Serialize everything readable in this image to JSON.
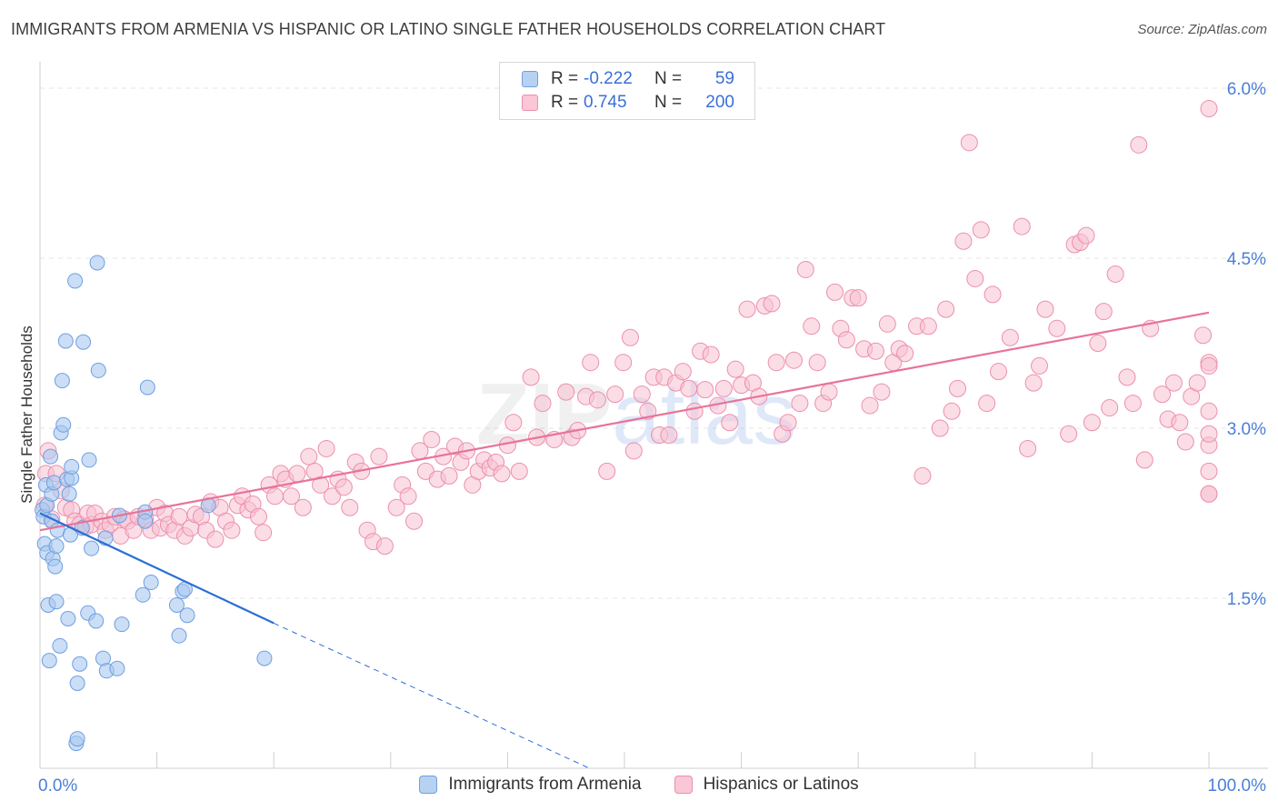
{
  "header": {
    "title": "IMMIGRANTS FROM ARMENIA VS HISPANIC OR LATINO SINGLE FATHER HOUSEHOLDS CORRELATION CHART",
    "source": "Source: ZipAtlas.com"
  },
  "legend": {
    "r_label": "R =",
    "n_label": "N =",
    "rows": [
      {
        "r": "-0.222",
        "n": "59",
        "color": "#9dc1ef"
      },
      {
        "r": "0.745",
        "n": "200",
        "color": "#f6b3c8"
      }
    ]
  },
  "bottom_legend": [
    "Immigrants from Armenia",
    "Hispanics or Latinos"
  ],
  "colors": {
    "blue_fill": "#a9c8f0",
    "blue_stroke": "#6f9fe0",
    "blue_line": "#2c6fd6",
    "pink_fill": "#f8c1d2",
    "pink_stroke": "#ec8fae",
    "pink_line": "#e8739a",
    "axis_text": "#4b7fd6"
  },
  "chart_data": {
    "type": "scatter",
    "title": "IMMIGRANTS FROM ARMENIA VS HISPANIC OR LATINO SINGLE FATHER HOUSEHOLDS CORRELATION CHART",
    "xlabel": "",
    "ylabel": "Single Father Households",
    "xlim": [
      0,
      100
    ],
    "ylim": [
      0,
      6.2
    ],
    "x_tick_labels": [
      "0.0%",
      "100.0%"
    ],
    "y_ticks": [
      1.5,
      3.0,
      4.5,
      6.0
    ],
    "y_tick_labels": [
      "1.5%",
      "3.0%",
      "4.5%",
      "6.0%"
    ],
    "grid": true,
    "watermark": "ZIPatlas",
    "series": [
      {
        "name": "Immigrants from Armenia",
        "r": -0.222,
        "n": 59,
        "trend": {
          "x": [
            0,
            20
          ],
          "y": [
            2.25,
            1.28
          ],
          "dashed_to": [
            47,
            0.0
          ]
        },
        "points": [
          [
            0.2,
            2.28
          ],
          [
            0.3,
            2.22
          ],
          [
            0.4,
            1.98
          ],
          [
            0.5,
            2.5
          ],
          [
            0.6,
            2.32
          ],
          [
            0.6,
            1.9
          ],
          [
            0.7,
            1.44
          ],
          [
            0.8,
            0.95
          ],
          [
            0.9,
            2.75
          ],
          [
            1.0,
            2.42
          ],
          [
            1.0,
            2.18
          ],
          [
            1.1,
            1.85
          ],
          [
            1.2,
            2.52
          ],
          [
            1.3,
            1.78
          ],
          [
            1.4,
            1.96
          ],
          [
            1.4,
            1.47
          ],
          [
            1.5,
            2.1
          ],
          [
            1.7,
            1.08
          ],
          [
            1.8,
            2.96
          ],
          [
            1.9,
            3.42
          ],
          [
            2.0,
            3.03
          ],
          [
            2.2,
            3.77
          ],
          [
            2.3,
            2.55
          ],
          [
            2.4,
            1.32
          ],
          [
            2.5,
            2.42
          ],
          [
            2.6,
            2.06
          ],
          [
            2.7,
            2.56
          ],
          [
            2.7,
            2.66
          ],
          [
            3.0,
            4.3
          ],
          [
            3.1,
            0.22
          ],
          [
            3.2,
            0.26
          ],
          [
            3.2,
            0.75
          ],
          [
            3.4,
            0.92
          ],
          [
            3.6,
            2.12
          ],
          [
            3.7,
            3.76
          ],
          [
            4.1,
            1.37
          ],
          [
            4.2,
            2.72
          ],
          [
            4.4,
            1.94
          ],
          [
            4.8,
            1.3
          ],
          [
            4.9,
            4.46
          ],
          [
            5.0,
            3.51
          ],
          [
            5.4,
            0.97
          ],
          [
            5.6,
            2.03
          ],
          [
            5.7,
            0.86
          ],
          [
            6.6,
            0.88
          ],
          [
            6.8,
            2.23
          ],
          [
            7.0,
            1.27
          ],
          [
            9.0,
            2.26
          ],
          [
            9.0,
            2.18
          ],
          [
            8.8,
            1.53
          ],
          [
            9.2,
            3.36
          ],
          [
            9.5,
            1.64
          ],
          [
            11.7,
            1.44
          ],
          [
            11.9,
            1.17
          ],
          [
            12.2,
            1.56
          ],
          [
            12.4,
            1.58
          ],
          [
            12.6,
            1.35
          ],
          [
            14.4,
            2.32
          ],
          [
            19.2,
            0.97
          ]
        ]
      },
      {
        "name": "Hispanics or Latinos",
        "r": 0.745,
        "n": 200,
        "trend": {
          "x": [
            0,
            100
          ],
          "y": [
            2.1,
            4.02
          ]
        },
        "points": [
          [
            0.4,
            2.32
          ],
          [
            0.5,
            2.6
          ],
          [
            0.7,
            2.8
          ],
          [
            1.0,
            2.2
          ],
          [
            1.4,
            2.6
          ],
          [
            1.8,
            2.45
          ],
          [
            2.2,
            2.3
          ],
          [
            2.7,
            2.28
          ],
          [
            3.0,
            2.18
          ],
          [
            3.4,
            2.15
          ],
          [
            3.9,
            2.13
          ],
          [
            4.1,
            2.25
          ],
          [
            4.4,
            2.15
          ],
          [
            4.7,
            2.25
          ],
          [
            5.3,
            2.18
          ],
          [
            5.6,
            2.1
          ],
          [
            6.0,
            2.15
          ],
          [
            6.4,
            2.22
          ],
          [
            6.9,
            2.05
          ],
          [
            7.2,
            2.2
          ],
          [
            7.5,
            2.18
          ],
          [
            8.0,
            2.1
          ],
          [
            8.4,
            2.22
          ],
          [
            9.0,
            2.2
          ],
          [
            9.5,
            2.1
          ],
          [
            10.0,
            2.3
          ],
          [
            10.3,
            2.12
          ],
          [
            10.7,
            2.25
          ],
          [
            11.0,
            2.15
          ],
          [
            11.5,
            2.1
          ],
          [
            11.9,
            2.22
          ],
          [
            12.4,
            2.05
          ],
          [
            12.9,
            2.12
          ],
          [
            13.3,
            2.24
          ],
          [
            13.8,
            2.22
          ],
          [
            14.2,
            2.1
          ],
          [
            14.6,
            2.35
          ],
          [
            15.0,
            2.02
          ],
          [
            15.4,
            2.3
          ],
          [
            15.9,
            2.18
          ],
          [
            16.4,
            2.1
          ],
          [
            16.9,
            2.32
          ],
          [
            17.3,
            2.4
          ],
          [
            17.8,
            2.28
          ],
          [
            18.2,
            2.33
          ],
          [
            18.7,
            2.22
          ],
          [
            19.1,
            2.08
          ],
          [
            19.6,
            2.5
          ],
          [
            20.1,
            2.4
          ],
          [
            20.6,
            2.6
          ],
          [
            21.0,
            2.55
          ],
          [
            21.5,
            2.4
          ],
          [
            22.0,
            2.6
          ],
          [
            22.5,
            2.3
          ],
          [
            23.0,
            2.75
          ],
          [
            23.5,
            2.62
          ],
          [
            24.0,
            2.5
          ],
          [
            24.5,
            2.82
          ],
          [
            25.0,
            2.4
          ],
          [
            25.5,
            2.55
          ],
          [
            26.0,
            2.48
          ],
          [
            26.5,
            2.3
          ],
          [
            27.0,
            2.7
          ],
          [
            27.5,
            2.62
          ],
          [
            28.0,
            2.1
          ],
          [
            28.5,
            2.0
          ],
          [
            29.0,
            2.75
          ],
          [
            29.5,
            1.96
          ],
          [
            30.5,
            2.3
          ],
          [
            31.0,
            2.5
          ],
          [
            31.5,
            2.4
          ],
          [
            32.0,
            2.18
          ],
          [
            32.5,
            2.8
          ],
          [
            33.0,
            2.62
          ],
          [
            33.5,
            2.9
          ],
          [
            34.0,
            2.55
          ],
          [
            34.5,
            2.75
          ],
          [
            35.0,
            2.58
          ],
          [
            35.5,
            2.84
          ],
          [
            36.0,
            2.7
          ],
          [
            36.5,
            2.8
          ],
          [
            37.0,
            2.5
          ],
          [
            37.5,
            2.62
          ],
          [
            38.0,
            2.72
          ],
          [
            38.5,
            2.65
          ],
          [
            39.0,
            2.7
          ],
          [
            39.5,
            2.6
          ],
          [
            40.0,
            2.85
          ],
          [
            40.5,
            3.05
          ],
          [
            41.0,
            2.62
          ],
          [
            42.0,
            3.45
          ],
          [
            42.5,
            2.92
          ],
          [
            43.0,
            3.22
          ],
          [
            44.0,
            2.9
          ],
          [
            45.0,
            3.32
          ],
          [
            45.5,
            2.92
          ],
          [
            46.0,
            2.98
          ],
          [
            46.7,
            3.28
          ],
          [
            47.1,
            3.58
          ],
          [
            47.7,
            3.25
          ],
          [
            48.5,
            2.62
          ],
          [
            49.2,
            3.3
          ],
          [
            49.9,
            3.58
          ],
          [
            50.5,
            3.8
          ],
          [
            50.8,
            2.8
          ],
          [
            51.5,
            3.3
          ],
          [
            52.0,
            3.15
          ],
          [
            52.5,
            3.45
          ],
          [
            53.0,
            2.94
          ],
          [
            53.4,
            3.45
          ],
          [
            53.8,
            2.94
          ],
          [
            54.4,
            3.4
          ],
          [
            55.0,
            3.5
          ],
          [
            55.5,
            3.35
          ],
          [
            56.0,
            3.15
          ],
          [
            56.5,
            3.68
          ],
          [
            56.9,
            3.34
          ],
          [
            57.4,
            3.65
          ],
          [
            58.0,
            3.2
          ],
          [
            58.5,
            3.35
          ],
          [
            59.0,
            3.05
          ],
          [
            59.5,
            3.52
          ],
          [
            60.0,
            3.38
          ],
          [
            60.5,
            4.05
          ],
          [
            61.0,
            3.4
          ],
          [
            61.5,
            3.28
          ],
          [
            62.0,
            4.08
          ],
          [
            62.6,
            4.1
          ],
          [
            63.0,
            3.58
          ],
          [
            63.5,
            2.95
          ],
          [
            64.0,
            3.05
          ],
          [
            64.5,
            3.6
          ],
          [
            65.0,
            3.22
          ],
          [
            65.5,
            4.4
          ],
          [
            66.0,
            3.9
          ],
          [
            66.5,
            3.58
          ],
          [
            67.0,
            3.22
          ],
          [
            67.5,
            3.32
          ],
          [
            68.0,
            4.2
          ],
          [
            68.5,
            3.88
          ],
          [
            69.0,
            3.78
          ],
          [
            69.5,
            4.15
          ],
          [
            70.0,
            4.15
          ],
          [
            70.5,
            3.7
          ],
          [
            71.0,
            3.2
          ],
          [
            71.5,
            3.68
          ],
          [
            72.0,
            3.32
          ],
          [
            72.5,
            3.92
          ],
          [
            73.0,
            3.58
          ],
          [
            73.5,
            3.7
          ],
          [
            74.0,
            3.66
          ],
          [
            75.0,
            3.9
          ],
          [
            75.5,
            2.58
          ],
          [
            76.0,
            3.9
          ],
          [
            77.0,
            3.0
          ],
          [
            77.5,
            4.05
          ],
          [
            78.0,
            3.15
          ],
          [
            78.5,
            3.35
          ],
          [
            79.0,
            4.65
          ],
          [
            79.5,
            5.52
          ],
          [
            80.0,
            4.32
          ],
          [
            80.5,
            4.75
          ],
          [
            81.0,
            3.22
          ],
          [
            81.5,
            4.18
          ],
          [
            82.0,
            3.5
          ],
          [
            83.0,
            3.8
          ],
          [
            84.0,
            4.78
          ],
          [
            84.5,
            2.82
          ],
          [
            85.0,
            3.4
          ],
          [
            85.5,
            3.55
          ],
          [
            86.0,
            4.05
          ],
          [
            87.0,
            3.88
          ],
          [
            88.0,
            2.95
          ],
          [
            88.5,
            4.62
          ],
          [
            89.0,
            4.64
          ],
          [
            89.5,
            4.7
          ],
          [
            90.0,
            3.05
          ],
          [
            90.5,
            3.75
          ],
          [
            91.0,
            4.03
          ],
          [
            91.5,
            3.18
          ],
          [
            92.0,
            4.36
          ],
          [
            93.0,
            3.45
          ],
          [
            93.5,
            3.22
          ],
          [
            94.0,
            5.5
          ],
          [
            94.5,
            2.72
          ],
          [
            95.0,
            3.88
          ],
          [
            96.0,
            3.3
          ],
          [
            96.5,
            3.08
          ],
          [
            97.0,
            3.4
          ],
          [
            97.5,
            3.05
          ],
          [
            98.0,
            2.88
          ],
          [
            98.5,
            3.28
          ],
          [
            99.0,
            3.4
          ],
          [
            99.5,
            3.82
          ],
          [
            100.0,
            3.58
          ],
          [
            100.5,
            3.15
          ],
          [
            101.0,
            2.85
          ],
          [
            101.5,
            2.95
          ],
          [
            102.0,
            2.42
          ],
          [
            103.0,
            2.42
          ],
          [
            103.5,
            2.62
          ],
          [
            104.0,
            3.55
          ],
          [
            104.5,
            5.82
          ]
        ]
      }
    ]
  }
}
